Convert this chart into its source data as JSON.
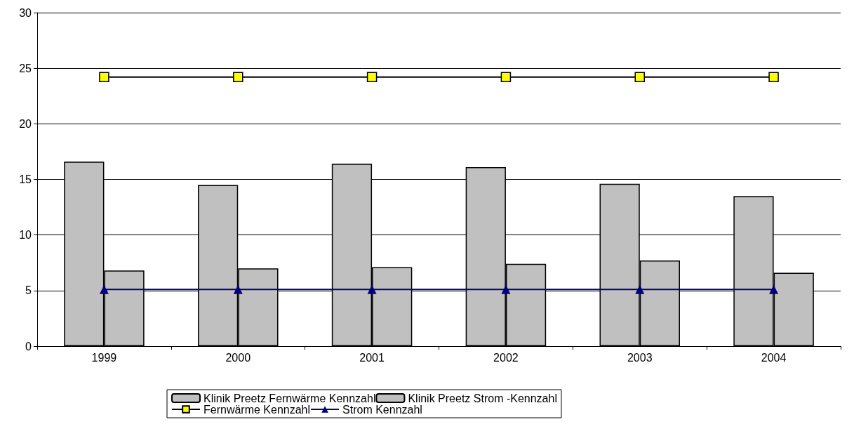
{
  "chart_data": {
    "type": "bar",
    "categories": [
      "1999",
      "2000",
      "2001",
      "2002",
      "2003",
      "2004"
    ],
    "series": [
      {
        "name": "Klinik Preetz Fernwärme Kennzahl",
        "color": "#c0c0c0",
        "values": [
          16.6,
          14.5,
          16.4,
          16.1,
          14.6,
          13.5
        ]
      },
      {
        "name": "Klinik Preetz Strom -Kennzahl",
        "color": "#c0c0c0",
        "values": [
          6.8,
          7.0,
          7.1,
          7.4,
          7.7,
          6.6
        ]
      },
      {
        "name": "Fernwärme Kennzahl",
        "type": "line",
        "color": "#000000",
        "marker": "square",
        "values": [
          24.2,
          24.2,
          24.2,
          24.2,
          24.2,
          24.2
        ]
      },
      {
        "name": "Strom Kennzahl",
        "type": "line",
        "color": "#000080",
        "marker": "triangle",
        "values": [
          5.1,
          5.1,
          5.1,
          5.1,
          5.1,
          5.1
        ]
      }
    ],
    "ylim": [
      0,
      30
    ],
    "yticks": [
      0,
      5,
      10,
      15,
      20,
      25,
      30
    ],
    "grid": "y",
    "legend": "bottom"
  }
}
